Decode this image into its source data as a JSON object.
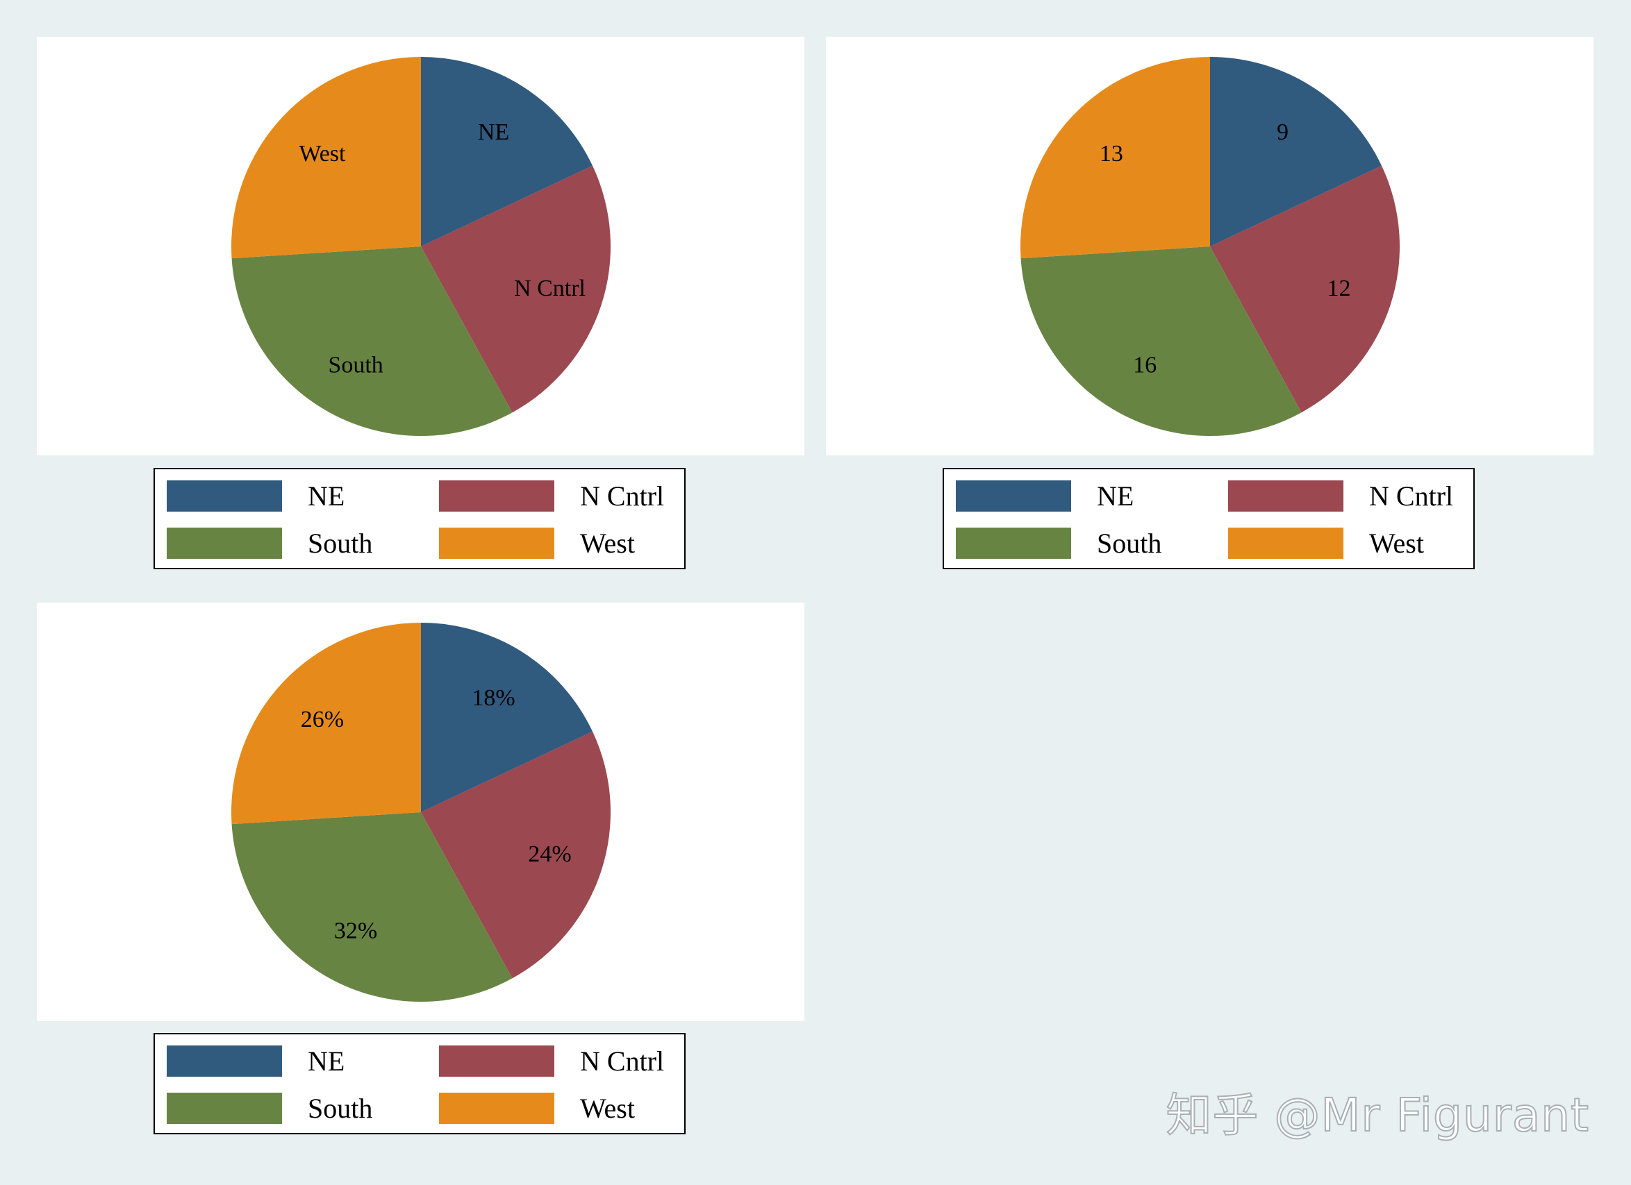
{
  "colors": {
    "NE": "#315a7f",
    "N Cntrl": "#9b4850",
    "South": "#688443",
    "West": "#e68b1b"
  },
  "chart_data": [
    {
      "type": "pie",
      "categories": [
        "NE",
        "N Cntrl",
        "South",
        "West"
      ],
      "values": [
        9,
        12,
        16,
        13
      ],
      "slice_labels": [
        "NE",
        "N Cntrl",
        "South",
        "West"
      ],
      "legend": {
        "entries": [
          "NE",
          "N Cntrl",
          "South",
          "West"
        ],
        "placement": "bottom",
        "columns": 2
      }
    },
    {
      "type": "pie",
      "categories": [
        "NE",
        "N Cntrl",
        "South",
        "West"
      ],
      "values": [
        9,
        12,
        16,
        13
      ],
      "slice_labels": [
        "9",
        "12",
        "16",
        "13"
      ],
      "legend": {
        "entries": [
          "NE",
          "N Cntrl",
          "South",
          "West"
        ],
        "placement": "bottom",
        "columns": 2
      }
    },
    {
      "type": "pie",
      "categories": [
        "NE",
        "N Cntrl",
        "South",
        "West"
      ],
      "values": [
        9,
        12,
        16,
        13
      ],
      "slice_labels": [
        "18%",
        "24%",
        "32%",
        "26%"
      ],
      "legend": {
        "entries": [
          "NE",
          "N Cntrl",
          "South",
          "West"
        ],
        "placement": "bottom",
        "columns": 2
      }
    }
  ],
  "watermark": "知乎 @Mr Figurant"
}
